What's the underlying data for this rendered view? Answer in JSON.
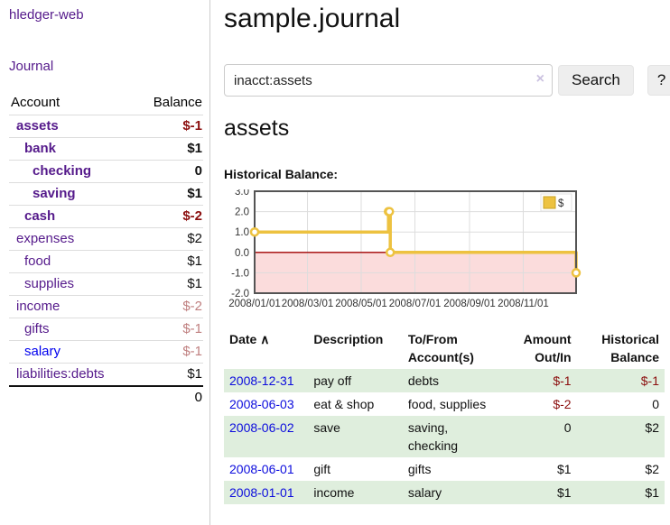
{
  "brand": "hledger-web",
  "sidebar": {
    "journal_link": "Journal",
    "accounts_table": {
      "headers": {
        "account": "Account",
        "balance": "Balance"
      },
      "rows": [
        {
          "name": "assets",
          "balance": "$-1",
          "indent": 1,
          "bold": true,
          "name_color": "purple",
          "balance_tone": "negative"
        },
        {
          "name": "bank",
          "balance": "$1",
          "indent": 2,
          "bold": true,
          "name_color": "purple",
          "balance_tone": "normal"
        },
        {
          "name": "checking",
          "balance": "0",
          "indent": 3,
          "bold": true,
          "name_color": "purple",
          "balance_tone": "normal"
        },
        {
          "name": "saving",
          "balance": "$1",
          "indent": 3,
          "bold": true,
          "name_color": "purple",
          "balance_tone": "normal"
        },
        {
          "name": "cash",
          "balance": "$-2",
          "indent": 2,
          "bold": true,
          "name_color": "purple",
          "balance_tone": "negative"
        },
        {
          "name": "expenses",
          "balance": "$2",
          "indent": 1,
          "bold": false,
          "name_color": "purple",
          "balance_tone": "normal"
        },
        {
          "name": "food",
          "balance": "$1",
          "indent": 2,
          "bold": false,
          "name_color": "purple",
          "balance_tone": "normal"
        },
        {
          "name": "supplies",
          "balance": "$1",
          "indent": 2,
          "bold": false,
          "name_color": "purple",
          "balance_tone": "normal"
        },
        {
          "name": "income",
          "balance": "$-2",
          "indent": 1,
          "bold": false,
          "name_color": "purple",
          "balance_tone": "negative-muted"
        },
        {
          "name": "gifts",
          "balance": "$-1",
          "indent": 2,
          "bold": false,
          "name_color": "purple",
          "balance_tone": "negative-muted"
        },
        {
          "name": "salary",
          "balance": "$-1",
          "indent": 2,
          "bold": false,
          "name_color": "blue",
          "balance_tone": "negative-muted"
        },
        {
          "name": "liabilities:debts",
          "balance": "$1",
          "indent": 1,
          "bold": false,
          "name_color": "purple",
          "balance_tone": "normal"
        }
      ],
      "total": "0"
    }
  },
  "main": {
    "title": "sample.journal",
    "search": {
      "value": "inacct:assets",
      "clear_icon": "×",
      "search_button": "Search",
      "help_button": "?"
    },
    "account_heading": "assets",
    "chart_title": "Historical Balance:"
  },
  "chart_data": {
    "type": "line",
    "title": "Historical Balance",
    "step": true,
    "series": [
      {
        "name": "$",
        "color": "#edc240",
        "points": [
          [
            "2008-01-01",
            1
          ],
          [
            "2008-06-01",
            2
          ],
          [
            "2008-06-02",
            2
          ],
          [
            "2008-06-03",
            0
          ],
          [
            "2008-12-31",
            -1
          ]
        ]
      }
    ],
    "xlim": [
      "2008-01-01",
      "2008-12-31"
    ],
    "ylim": [
      -2,
      3
    ],
    "x_ticks": [
      "2008/01/01",
      "2008/03/01",
      "2008/05/01",
      "2008/07/01",
      "2008/09/01",
      "2008/11/01"
    ],
    "y_ticks": [
      3.0,
      2.0,
      1.0,
      0.0,
      -1.0,
      -2.0
    ],
    "y_tick_labels": [
      "3.0",
      "2.0",
      "1.0",
      "0.0",
      "-1.0",
      "-2.0"
    ],
    "grid": true,
    "legend": {
      "label": "$",
      "position": "top-right"
    },
    "colors": {
      "line": "#edc240",
      "point_fill": "#ffffff",
      "negative_region": "#fbdcdc",
      "zero_line": "#a00000",
      "border": "#545454",
      "gridline": "#dddddd"
    }
  },
  "register": {
    "headers": {
      "date": "Date",
      "sort_icon": "∧",
      "description": "Description",
      "accounts": "To/From Account(s)",
      "amount": "Amount Out/In",
      "balance": "Historical Balance"
    },
    "rows": [
      {
        "date": "2008-12-31",
        "description": "pay off",
        "accounts": "debts",
        "amount": "$-1",
        "amount_negative": true,
        "balance": "$-1",
        "balance_negative": true
      },
      {
        "date": "2008-06-03",
        "description": "eat & shop",
        "accounts": "food, supplies",
        "amount": "$-2",
        "amount_negative": true,
        "balance": "0",
        "balance_negative": false
      },
      {
        "date": "2008-06-02",
        "description": "save",
        "accounts": "saving, checking",
        "amount": "0",
        "amount_negative": false,
        "balance": "$2",
        "balance_negative": false
      },
      {
        "date": "2008-06-01",
        "description": "gift",
        "accounts": "gifts",
        "amount": "$1",
        "amount_negative": false,
        "balance": "$2",
        "balance_negative": false
      },
      {
        "date": "2008-01-01",
        "description": "income",
        "accounts": "salary",
        "amount": "$1",
        "amount_negative": false,
        "balance": "$1",
        "balance_negative": false
      }
    ]
  },
  "colors": {
    "link_purple": "#551a8b",
    "link_blue": "#0000ee",
    "negative": "#8b0e0e",
    "negative_muted": "#bf7f7f",
    "row_green": "#dfeedd",
    "accent_gold": "#edc240"
  }
}
